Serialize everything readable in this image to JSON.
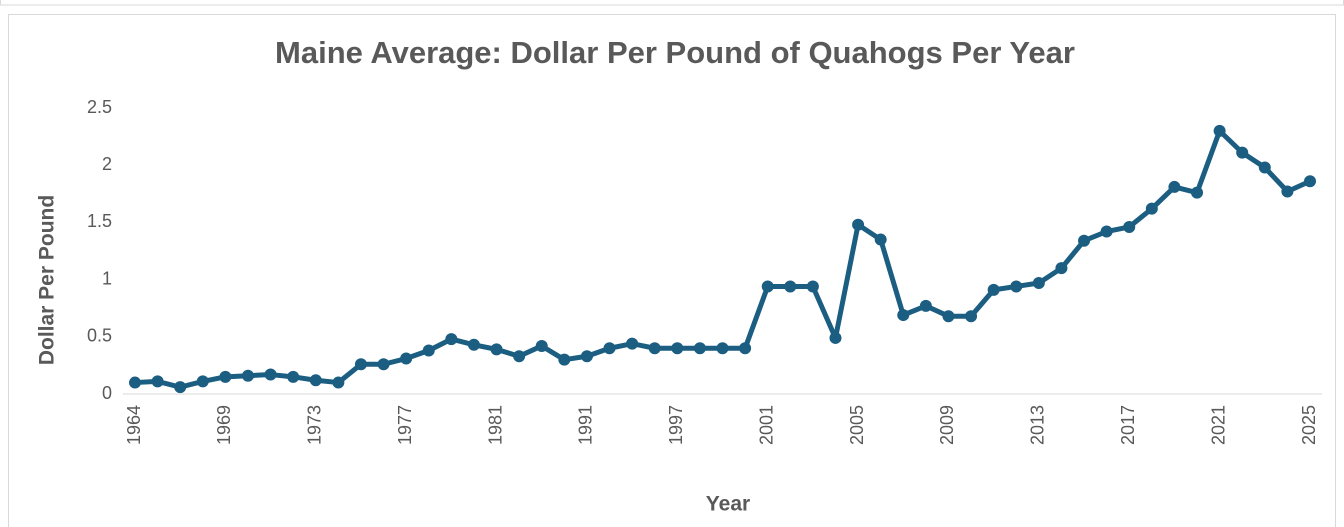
{
  "chart_data": {
    "type": "line",
    "title": "Maine Average: Dollar Per Pound of Quahogs Per Year",
    "x_label": "Year",
    "y_label": "Dollar Per Pound",
    "categories": [
      "1964",
      null,
      null,
      null,
      "1969",
      null,
      null,
      null,
      "1973",
      null,
      null,
      null,
      "1977",
      null,
      null,
      null,
      "1981",
      null,
      null,
      null,
      "1991",
      null,
      null,
      null,
      "1997",
      null,
      null,
      null,
      "2001",
      null,
      null,
      null,
      "2005",
      null,
      null,
      null,
      "2009",
      null,
      null,
      null,
      "2013",
      null,
      null,
      null,
      "2017",
      null,
      null,
      null,
      "2021",
      null,
      null,
      null,
      "2025"
    ],
    "series": [
      {
        "name": "Dollar Per Pound",
        "color": "#1b5e82",
        "values": [
          0.1,
          0.11,
          0.06,
          0.11,
          0.15,
          0.16,
          0.17,
          0.15,
          0.12,
          0.1,
          0.26,
          0.26,
          0.31,
          0.38,
          0.48,
          0.43,
          0.39,
          0.33,
          0.42,
          0.3,
          0.33,
          0.4,
          0.44,
          0.4,
          0.4,
          0.4,
          0.4,
          0.4,
          0.94,
          0.94,
          0.94,
          0.49,
          1.48,
          1.35,
          0.69,
          0.77,
          0.68,
          0.68,
          0.91,
          0.94,
          0.97,
          1.1,
          1.34,
          1.42,
          1.46,
          1.62,
          1.81,
          1.76,
          2.3,
          2.11,
          1.98,
          1.77,
          1.86
        ]
      }
    ],
    "ylim": [
      0,
      2.5
    ],
    "yticks": [
      0,
      0.5,
      1,
      1.5,
      2,
      2.5
    ],
    "grid": false
  }
}
